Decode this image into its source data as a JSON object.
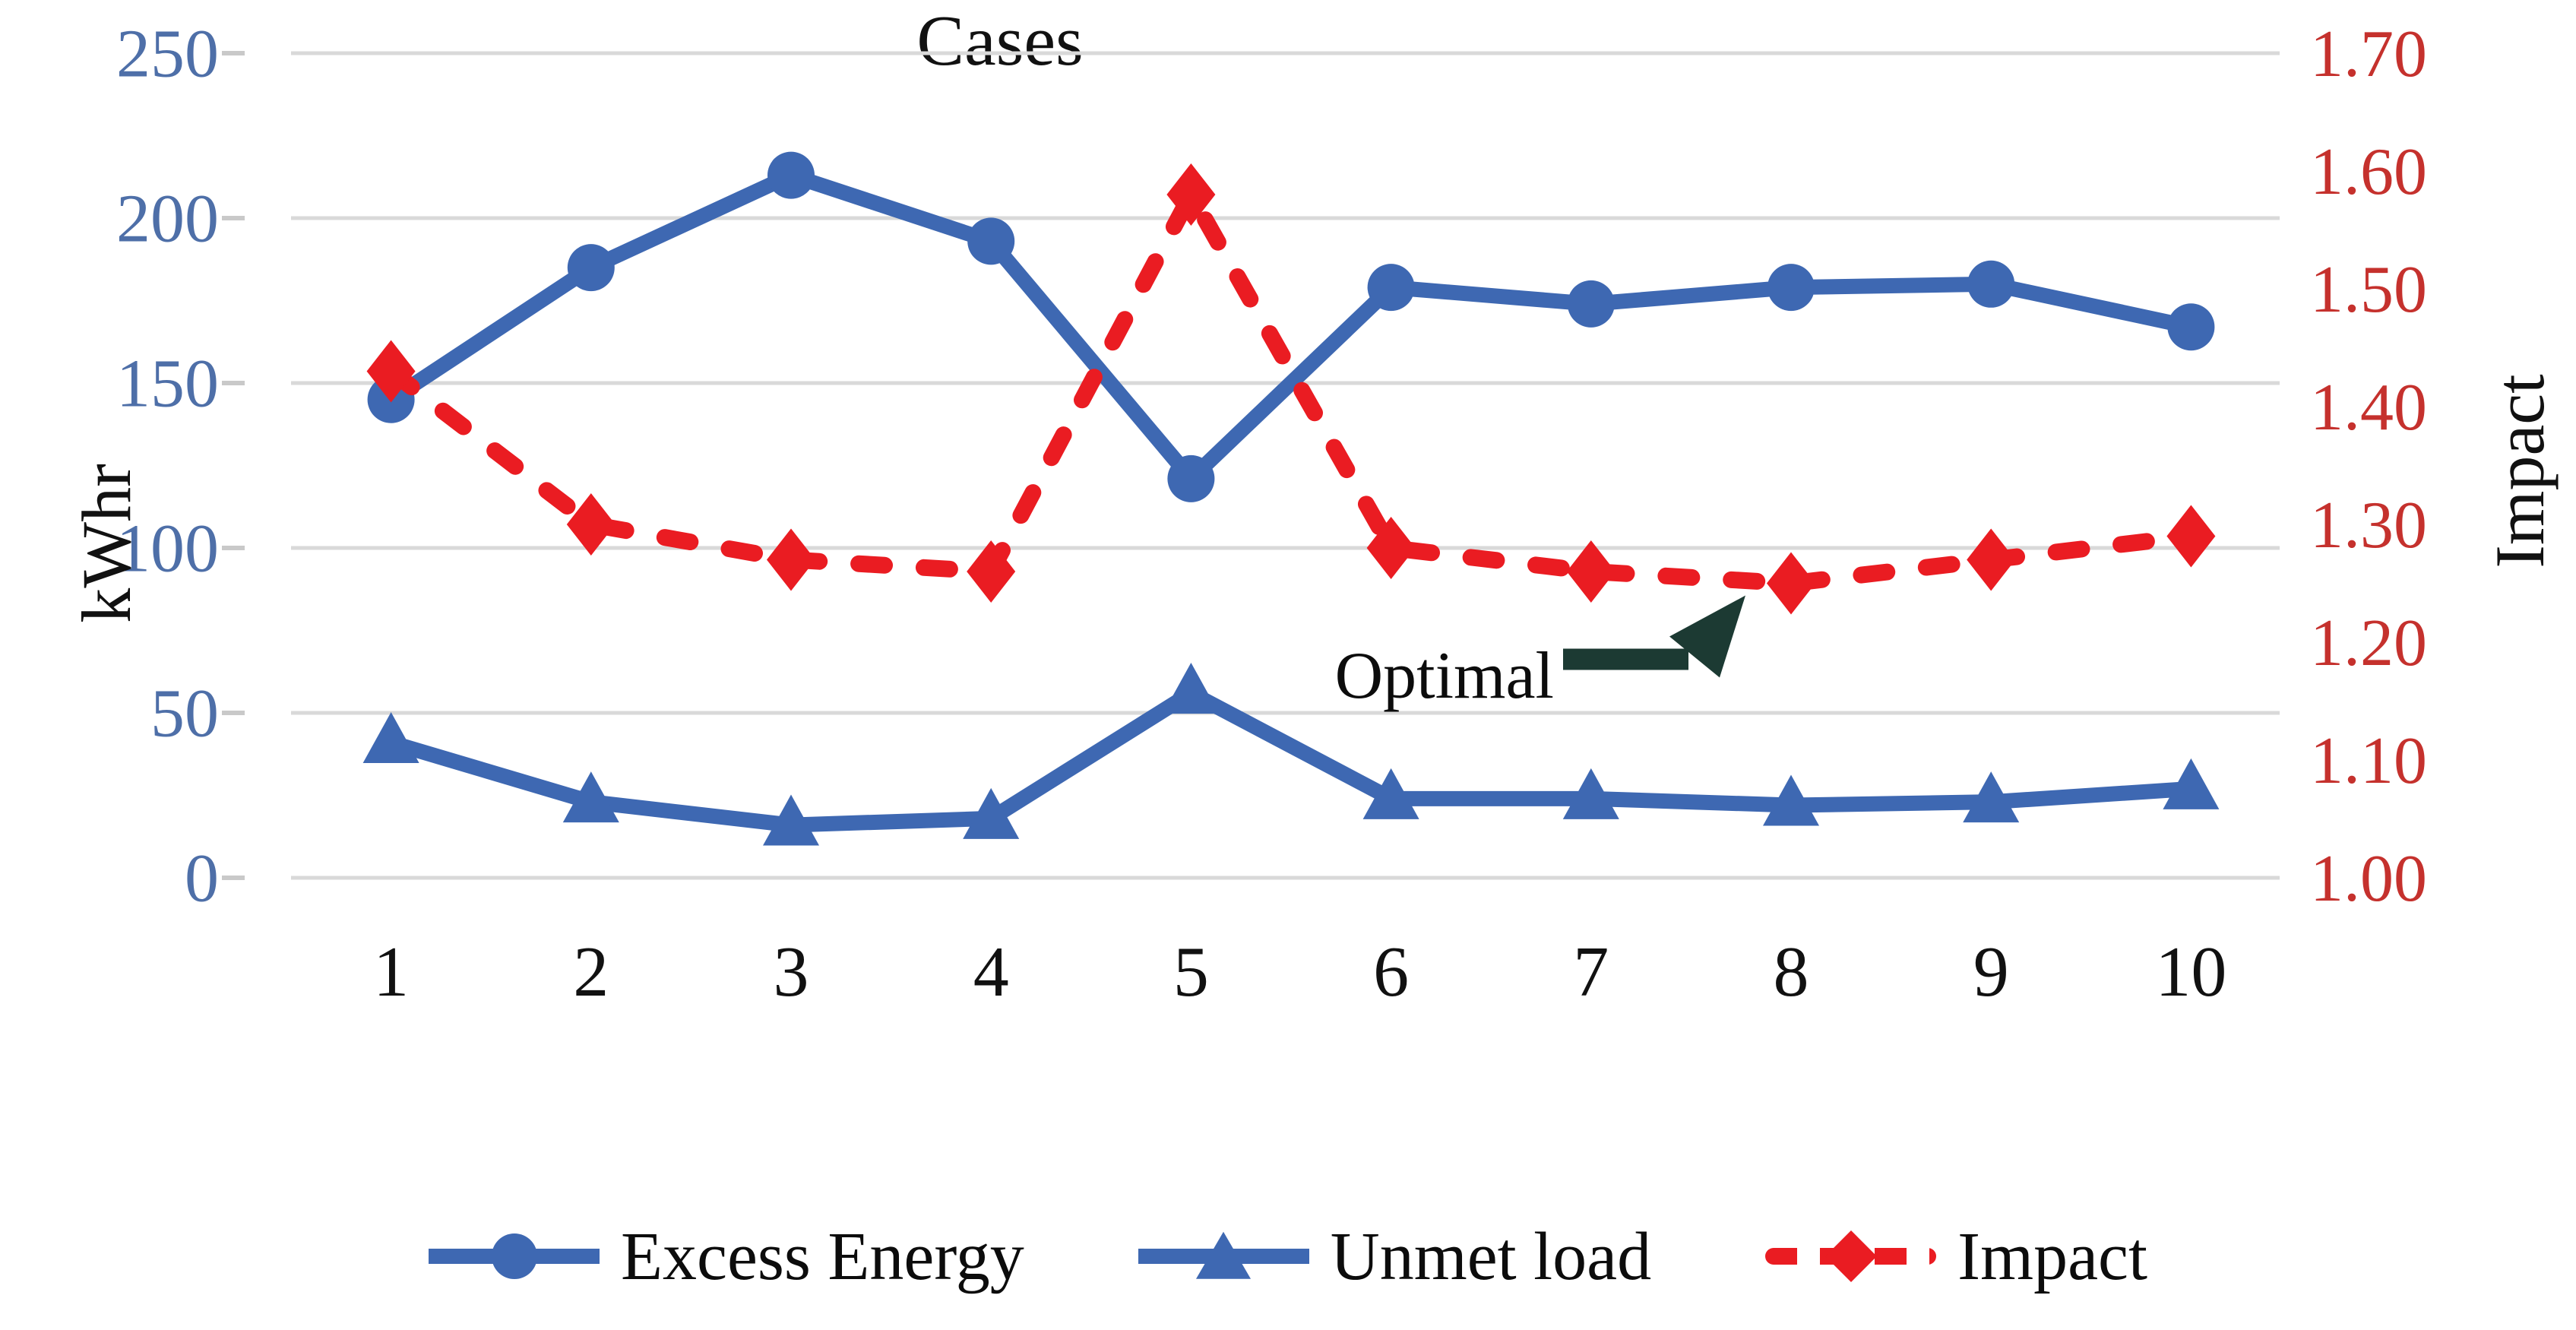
{
  "chart_data": {
    "type": "line",
    "title": "",
    "categories": [
      "1",
      "2",
      "3",
      "4",
      "5",
      "6",
      "7",
      "8",
      "9",
      "10"
    ],
    "xlabel": "Cases",
    "left_axis": {
      "label": "kWhr",
      "min": 0,
      "max": 250,
      "ticks": [
        0,
        50,
        100,
        150,
        200,
        250
      ],
      "tick_labels": [
        "0",
        "50",
        "100",
        "150",
        "200",
        "250"
      ],
      "tick_color": "#4E6FA8"
    },
    "right_axis": {
      "label": "Impact",
      "min": 1.0,
      "max": 1.7,
      "ticks": [
        1.0,
        1.1,
        1.2,
        1.3,
        1.4,
        1.5,
        1.6,
        1.7
      ],
      "tick_labels": [
        "1.00",
        "1.10",
        "1.20",
        "1.30",
        "1.40",
        "1.50",
        "1.60",
        "1.70"
      ],
      "tick_color": "#C5312D"
    },
    "grid": true,
    "grid_color": "#D9D9D9",
    "tick_mark_color": "#C9C9C9",
    "legend_position": "bottom",
    "series": [
      {
        "name": "Excess Energy",
        "axis": "left",
        "color": "#3E68B2",
        "marker": "circle",
        "line_style": "solid",
        "values": [
          145,
          185,
          213,
          193,
          121,
          179,
          174,
          179,
          180,
          167
        ]
      },
      {
        "name": "Unmet load",
        "axis": "left",
        "color": "#3E68B2",
        "marker": "triangle",
        "line_style": "solid",
        "values": [
          41,
          23,
          16,
          18,
          56,
          24,
          24,
          22,
          23,
          27
        ]
      },
      {
        "name": "Impact",
        "axis": "right",
        "color": "#EA1C22",
        "marker": "diamond",
        "line_style": "dashed",
        "values": [
          1.43,
          1.3,
          1.27,
          1.26,
          1.58,
          1.28,
          1.26,
          1.25,
          1.27,
          1.29
        ]
      }
    ],
    "annotation": {
      "text": "Optimal",
      "series": "Impact",
      "target_case": 8,
      "arrow_color": "#1C3A33"
    }
  }
}
